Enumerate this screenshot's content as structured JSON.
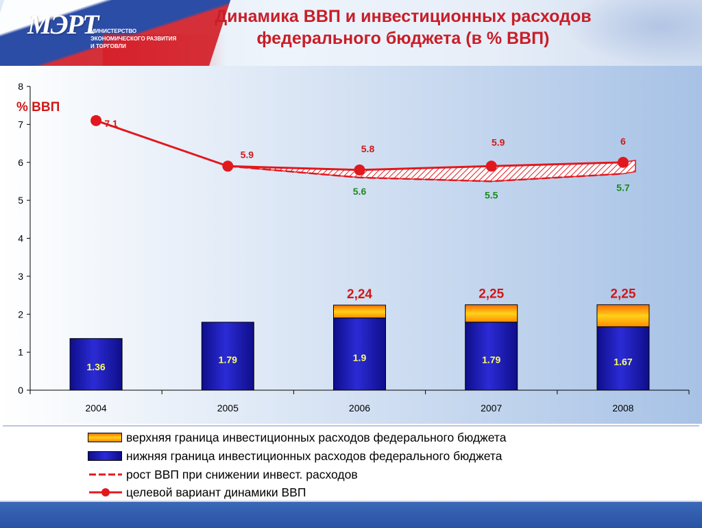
{
  "header": {
    "logo_text": "МЭРТ",
    "ministry_lines": [
      "МИНИСТЕРСТВО",
      "ЭКОНОМИЧЕСКОГО РАЗВИТИЯ",
      "И ТОРГОВЛИ"
    ],
    "title_line1": "Динамика ВВП и инвестиционных расходов",
    "title_line2": "федерального бюджета  (в % ВВП)"
  },
  "colors": {
    "bar_blue": "#1d1db8",
    "bar_orange": "#ff9a00",
    "line_red": "#e0191f",
    "green_label": "#1a8a1a",
    "red_label": "#d01818"
  },
  "chart_data": {
    "type": "bar+line",
    "unit_label": "% ВВП",
    "categories": [
      "2004",
      "2005",
      "2006",
      "2007",
      "2008"
    ],
    "ylim": [
      0,
      8
    ],
    "y_ticks": [
      0,
      1,
      2,
      3,
      4,
      5,
      6,
      7,
      8
    ],
    "lower_bound": {
      "name": "нижняя граница  инвестиционных расходов  федерального бюджета",
      "values": [
        1.36,
        1.79,
        1.9,
        1.79,
        1.67
      ],
      "labels": [
        "1.36",
        "1.79",
        "1.9",
        "1.79",
        "1.67"
      ]
    },
    "upper_bound": {
      "name": "верхняя граница инвестиционных расходов федерального бюджета",
      "values": [
        null,
        null,
        2.24,
        2.25,
        2.25
      ],
      "labels": [
        "",
        "",
        "2,24",
        "2,25",
        "2,25"
      ]
    },
    "gdp_target": {
      "name": "целевой вариант динамики   ВВП",
      "values": [
        7.1,
        5.9,
        5.8,
        5.9,
        6.0
      ],
      "labels": [
        "7.1",
        "5.9",
        "5.8",
        "5.9",
        "6"
      ]
    },
    "gdp_reduced": {
      "name": "рост  ВВП при снижении инвест. расходов",
      "values": [
        null,
        5.9,
        5.6,
        5.5,
        5.7
      ],
      "labels": [
        "",
        "",
        "5.6",
        "5.5",
        "5.7"
      ]
    }
  }
}
